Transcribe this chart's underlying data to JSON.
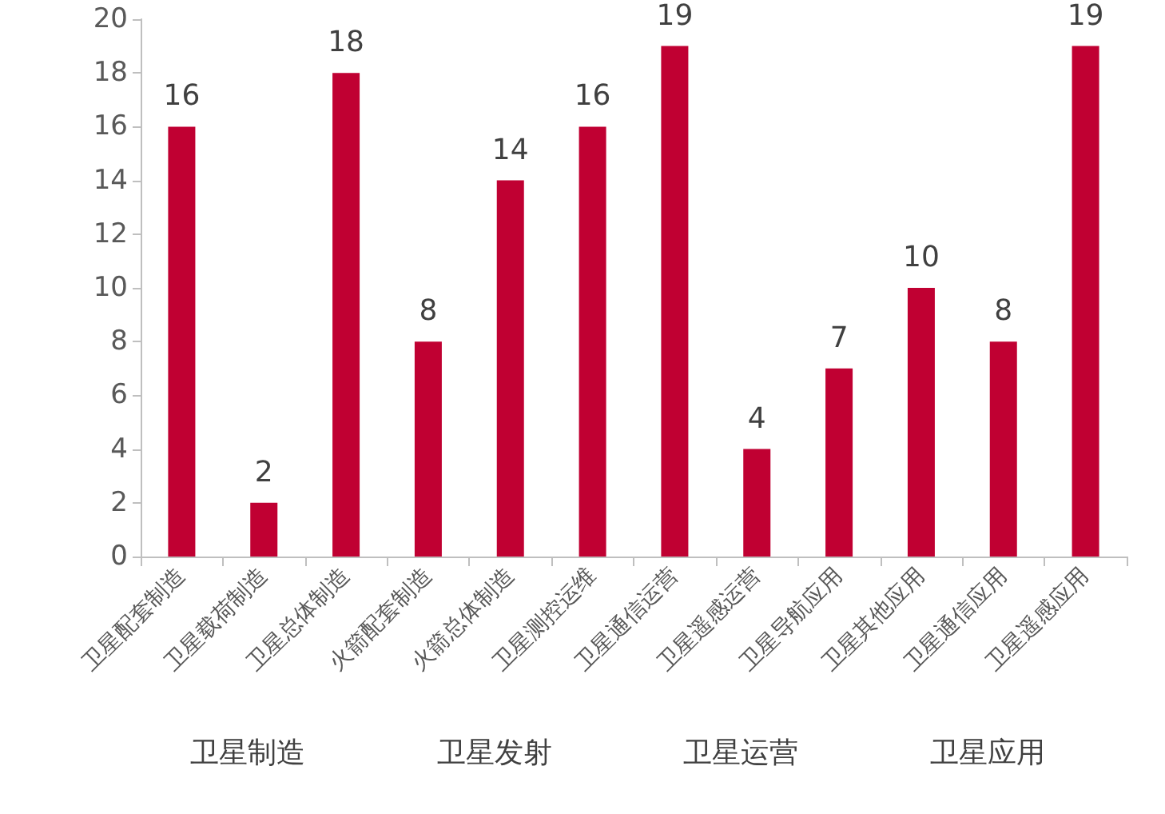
{
  "chart_data": {
    "type": "bar",
    "categories": [
      "卫星配套制造",
      "卫星载荷制造",
      "卫星总体制造",
      "火箭配套制造",
      "火箭总体制造",
      "卫星测控运维",
      "卫星通信运营",
      "卫星遥感运营",
      "卫星导航应用",
      "卫星其他应用",
      "卫星通信应用",
      "卫星遥感应用"
    ],
    "values": [
      16,
      2,
      18,
      8,
      14,
      16,
      19,
      4,
      7,
      10,
      8,
      19
    ],
    "color": "#c00032",
    "ylim": [
      0,
      20
    ],
    "yticks": [
      0,
      2,
      4,
      6,
      8,
      10,
      12,
      14,
      16,
      18,
      20
    ],
    "data_labels": true,
    "grid": false,
    "annotations": [
      "卫星制造",
      "卫星发射",
      "卫星运营",
      "卫星应用"
    ]
  }
}
